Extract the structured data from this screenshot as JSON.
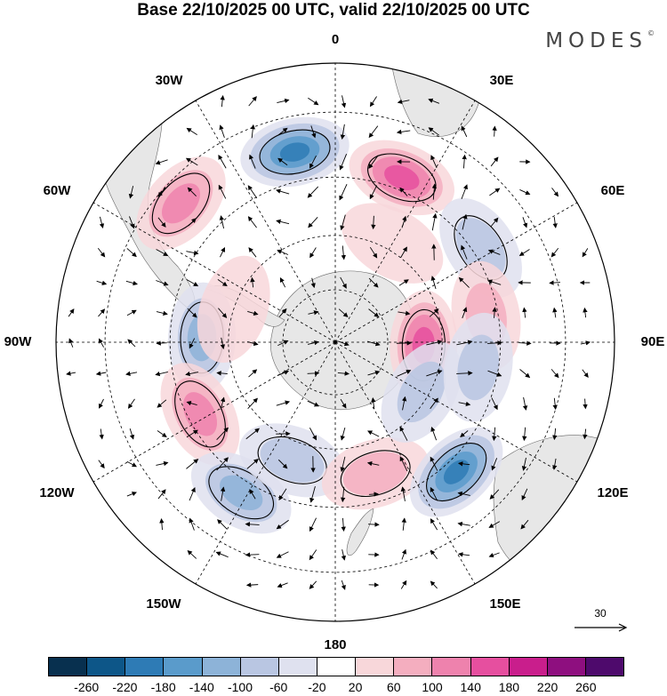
{
  "title": "Base 22/10/2025 00 UTC, valid 22/10/2025 00 UTC",
  "brand": {
    "name": "MODES",
    "mark": "©"
  },
  "map": {
    "projection": "south polar stereographic",
    "longitude_labels": {
      "top": "0",
      "top_right": "30E",
      "right_upper": "60E",
      "right": "90E",
      "right_lower": "120E",
      "bottom_right": "150E",
      "bottom": "180",
      "bottom_left": "150W",
      "left_lower": "120W",
      "left": "90W",
      "left_upper": "60W",
      "top_left": "30W"
    },
    "reference_vector": {
      "label": "30"
    }
  },
  "colorbar": {
    "ticks": [
      "-260",
      "-220",
      "-180",
      "-140",
      "-100",
      "-60",
      "-20",
      "20",
      "60",
      "100",
      "140",
      "180",
      "220",
      "260"
    ],
    "colors": [
      "#08304f",
      "#0d5688",
      "#2e7bb5",
      "#5a9bcb",
      "#8db3d8",
      "#b9c6e2",
      "#dfe1ef",
      "#ffffff",
      "#f8d7da",
      "#f4aebf",
      "#ee82ad",
      "#e64f9f",
      "#c91e8c",
      "#8e0f7f",
      "#4e0a6c"
    ]
  },
  "anomaly_blobs": [
    {
      "lat": -38,
      "lon": -12,
      "value": -230
    },
    {
      "lat": -42,
      "lon": 22,
      "value": 170
    },
    {
      "lat": -35,
      "lon": -48,
      "value": 120
    },
    {
      "lat": -43,
      "lon": 57,
      "value": -110
    },
    {
      "lat": -53,
      "lon": -88,
      "value": -120
    },
    {
      "lat": -65,
      "lon": 92,
      "value": 170
    },
    {
      "lat": -48,
      "lon": -118,
      "value": 140
    },
    {
      "lat": -42,
      "lon": -148,
      "value": -130
    },
    {
      "lat": -55,
      "lon": -160,
      "value": -110
    },
    {
      "lat": -52,
      "lon": 163,
      "value": 110
    },
    {
      "lat": -42,
      "lon": 137,
      "value": -210
    },
    {
      "lat": -62,
      "lon": 120,
      "value": -80
    },
    {
      "lat": -48,
      "lon": 80,
      "value": 80
    },
    {
      "lat": -60,
      "lon": -72,
      "value": 60
    },
    {
      "lat": -58,
      "lon": 30,
      "value": 60
    },
    {
      "lat": -50,
      "lon": 100,
      "value": -80
    }
  ]
}
